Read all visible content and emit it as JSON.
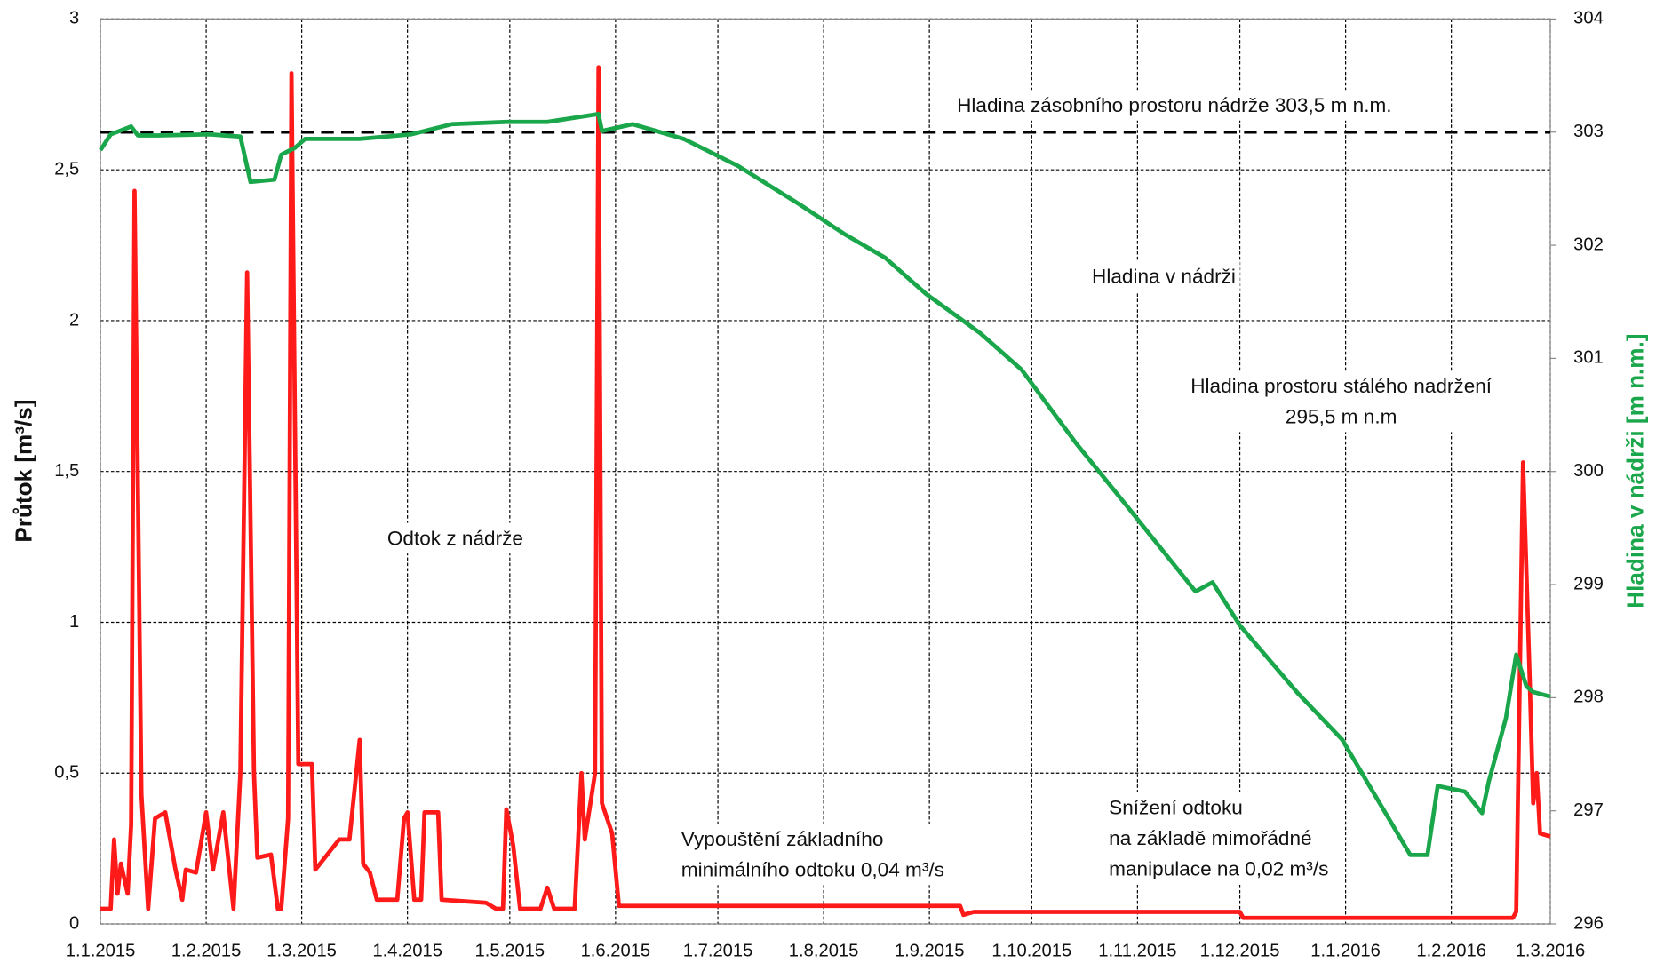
{
  "chart_data": {
    "type": "line",
    "ylabel": "Průtok [m³/s]",
    "y2label": "Hladina v nádrži [m n.m.]",
    "y2label_color": "#1aa64a",
    "xlim": [
      "2015-01-01",
      "2016-03-01"
    ],
    "xticks": [
      {
        "value": "2015-01-01",
        "label": "1.1.2015"
      },
      {
        "value": "2015-02-01",
        "label": "1.2.2015"
      },
      {
        "value": "2015-03-01",
        "label": "1.3.2015"
      },
      {
        "value": "2015-04-01",
        "label": "1.4.2015"
      },
      {
        "value": "2015-05-01",
        "label": "1.5.2015"
      },
      {
        "value": "2015-06-01",
        "label": "1.6.2015"
      },
      {
        "value": "2015-07-01",
        "label": "1.7.2015"
      },
      {
        "value": "2015-08-01",
        "label": "1.8.2015"
      },
      {
        "value": "2015-09-01",
        "label": "1.9.2015"
      },
      {
        "value": "2015-10-01",
        "label": "1.10.2015"
      },
      {
        "value": "2015-11-01",
        "label": "1.11.2015"
      },
      {
        "value": "2015-12-01",
        "label": "1.12.2015"
      },
      {
        "value": "2016-01-01",
        "label": "1.1.2016"
      },
      {
        "value": "2016-02-01",
        "label": "1.2.2016"
      },
      {
        "value": "2016-03-01",
        "label": "1.3.2016"
      }
    ],
    "ylim": [
      0,
      3
    ],
    "yticks": [
      0,
      {
        "value": 0.5,
        "label": "0,5"
      },
      1,
      {
        "value": 1.5,
        "label": "1,5"
      },
      2,
      {
        "value": 2.5,
        "label": "2,5"
      },
      3
    ],
    "y2lim": [
      296,
      304
    ],
    "y2ticks": [
      296,
      297,
      298,
      299,
      300,
      301,
      302,
      303,
      304
    ],
    "grid": true,
    "reference_line": {
      "axis": "y2",
      "value": 303,
      "color": "#000000"
    },
    "series": [
      {
        "name": "Odtok z nádrže",
        "color": "#ff1a1a",
        "axis": "y",
        "x": [
          "2015-01-01",
          "2015-01-04",
          "2015-01-05",
          "2015-01-06",
          "2015-01-07",
          "2015-01-09",
          "2015-01-10",
          "2015-01-11",
          "2015-01-13",
          "2015-01-15",
          "2015-01-17",
          "2015-01-20",
          "2015-01-23",
          "2015-01-25",
          "2015-01-26",
          "2015-01-29",
          "2015-02-01",
          "2015-02-03",
          "2015-02-06",
          "2015-02-09",
          "2015-02-11",
          "2015-02-13",
          "2015-02-15",
          "2015-02-16",
          "2015-02-20",
          "2015-02-22",
          "2015-02-23",
          "2015-02-25",
          "2015-02-26",
          "2015-02-28",
          "2015-03-04",
          "2015-03-05",
          "2015-03-12",
          "2015-03-15",
          "2015-03-18",
          "2015-03-19",
          "2015-03-21",
          "2015-03-23",
          "2015-03-29",
          "2015-03-31",
          "2015-04-01",
          "2015-04-03",
          "2015-04-05",
          "2015-04-06",
          "2015-04-10",
          "2015-04-11",
          "2015-04-24",
          "2015-04-27",
          "2015-04-29",
          "2015-04-30",
          "2015-05-02",
          "2015-05-04",
          "2015-05-10",
          "2015-05-12",
          "2015-05-14",
          "2015-05-20",
          "2015-05-22",
          "2015-05-23",
          "2015-05-26",
          "2015-05-27",
          "2015-05-28",
          "2015-05-31",
          "2015-06-02",
          "2015-09-10",
          "2015-09-11",
          "2015-09-14",
          "2015-12-01",
          "2015-12-02",
          "2016-02-19",
          "2016-02-20",
          "2016-02-22",
          "2016-02-24",
          "2016-02-25",
          "2016-02-26",
          "2016-02-27",
          "2016-03-01"
        ],
        "values": [
          0.05,
          0.05,
          0.28,
          0.1,
          0.2,
          0.1,
          0.33,
          2.43,
          0.43,
          0.05,
          0.35,
          0.37,
          0.18,
          0.08,
          0.18,
          0.17,
          0.37,
          0.18,
          0.37,
          0.05,
          0.5,
          2.16,
          0.5,
          0.22,
          0.23,
          0.05,
          0.05,
          0.35,
          2.82,
          0.53,
          0.53,
          0.18,
          0.28,
          0.28,
          0.61,
          0.2,
          0.17,
          0.08,
          0.08,
          0.35,
          0.37,
          0.08,
          0.08,
          0.37,
          0.37,
          0.08,
          0.07,
          0.05,
          0.05,
          0.38,
          0.26,
          0.05,
          0.05,
          0.12,
          0.05,
          0.05,
          0.5,
          0.28,
          0.5,
          2.84,
          0.4,
          0.3,
          0.06,
          0.06,
          0.03,
          0.04,
          0.04,
          0.02,
          0.02,
          0.04,
          1.53,
          0.8,
          0.4,
          0.5,
          0.3,
          0.29
        ]
      },
      {
        "name": "Hladina v nádrži",
        "color": "#1aa64a",
        "axis": "y2",
        "x": [
          "2015-01-01",
          "2015-01-04",
          "2015-01-10",
          "2015-01-12",
          "2015-01-18",
          "2015-02-02",
          "2015-02-11",
          "2015-02-14",
          "2015-02-21",
          "2015-02-23",
          "2015-02-27",
          "2015-03-02",
          "2015-03-18",
          "2015-04-02",
          "2015-04-14",
          "2015-04-30",
          "2015-05-12",
          "2015-05-27",
          "2015-05-28",
          "2015-06-06",
          "2015-06-21",
          "2015-07-07",
          "2015-07-25",
          "2015-08-07",
          "2015-08-19",
          "2015-08-31",
          "2015-09-16",
          "2015-09-28",
          "2015-10-14",
          "2015-10-29",
          "2015-11-14",
          "2015-11-18",
          "2015-11-23",
          "2015-12-01",
          "2015-12-18",
          "2015-12-31",
          "2016-01-08",
          "2016-01-20",
          "2016-01-25",
          "2016-01-28",
          "2016-02-05",
          "2016-02-10",
          "2016-02-12",
          "2016-02-17",
          "2016-02-20",
          "2016-02-23",
          "2016-02-25",
          "2016-03-01"
        ],
        "values": [
          302.84,
          302.98,
          303.05,
          302.97,
          302.97,
          302.98,
          302.96,
          302.56,
          302.58,
          302.8,
          302.86,
          302.94,
          302.94,
          302.98,
          303.07,
          303.09,
          303.09,
          303.16,
          303.01,
          303.07,
          302.94,
          302.7,
          302.36,
          302.1,
          301.89,
          301.57,
          301.22,
          300.9,
          300.25,
          299.69,
          299.09,
          298.94,
          299.02,
          298.64,
          298.04,
          297.63,
          297.22,
          296.61,
          296.61,
          297.22,
          297.17,
          296.98,
          297.26,
          297.82,
          298.38,
          298.1,
          298.05,
          298.01
        ]
      }
    ],
    "annotations": [
      {
        "lines": [
          "Hladina zásobního prostoru nádrže 303,5 m n.m."
        ],
        "color": "#111111"
      },
      {
        "lines": [
          "Hladina v nádrži"
        ],
        "color": "#1aa64a"
      },
      {
        "lines": [
          "Hladina prostoru stálého nadržení",
          "295,5 m n.m"
        ],
        "color": "#111111"
      },
      {
        "lines": [
          "Odtok z nádrže"
        ],
        "color": "#ff1a1a"
      },
      {
        "lines": [
          "Vypouštění základního",
          "minimálního odtoku 0,04 m³/s"
        ],
        "color": "#111111"
      },
      {
        "lines": [
          "Snížení odtoku",
          "na základě mimořádné",
          "manipulace na 0,02 m³/s"
        ],
        "color": "#111111"
      }
    ]
  }
}
